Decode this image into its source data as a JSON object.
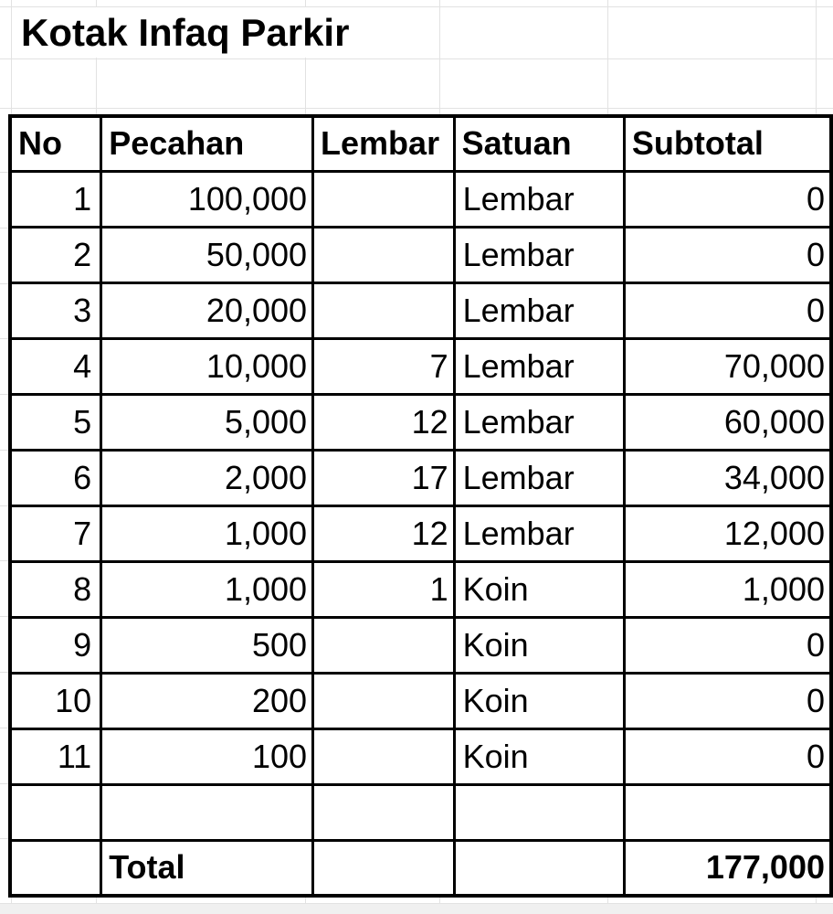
{
  "title": "Kotak Infaq Parkir",
  "table": {
    "headers": {
      "no": "No",
      "pecahan": "Pecahan",
      "lembar": "Lembar",
      "satuan": "Satuan",
      "subtotal": "Subtotal"
    },
    "rows": [
      {
        "no": "1",
        "pecahan": "100,000",
        "lembar": "",
        "satuan": "Lembar",
        "subtotal": "0"
      },
      {
        "no": "2",
        "pecahan": "50,000",
        "lembar": "",
        "satuan": "Lembar",
        "subtotal": "0"
      },
      {
        "no": "3",
        "pecahan": "20,000",
        "lembar": "",
        "satuan": "Lembar",
        "subtotal": "0"
      },
      {
        "no": "4",
        "pecahan": "10,000",
        "lembar": "7",
        "satuan": "Lembar",
        "subtotal": "70,000"
      },
      {
        "no": "5",
        "pecahan": "5,000",
        "lembar": "12",
        "satuan": "Lembar",
        "subtotal": "60,000"
      },
      {
        "no": "6",
        "pecahan": "2,000",
        "lembar": "17",
        "satuan": "Lembar",
        "subtotal": "34,000"
      },
      {
        "no": "7",
        "pecahan": "1,000",
        "lembar": "12",
        "satuan": "Lembar",
        "subtotal": "12,000"
      },
      {
        "no": "8",
        "pecahan": "1,000",
        "lembar": "1",
        "satuan": "Koin",
        "subtotal": "1,000"
      },
      {
        "no": "9",
        "pecahan": "500",
        "lembar": "",
        "satuan": "Koin",
        "subtotal": "0"
      },
      {
        "no": "10",
        "pecahan": "200",
        "lembar": "",
        "satuan": "Koin",
        "subtotal": "0"
      },
      {
        "no": "11",
        "pecahan": "100",
        "lembar": "",
        "satuan": "Koin",
        "subtotal": "0"
      }
    ],
    "total": {
      "label": "Total",
      "value": "177,000"
    }
  },
  "colors": {
    "text": "#000000",
    "table_border": "#000000",
    "gridline": "#e2e2e2",
    "bottom_strip": "#f0f0f0",
    "background": "#ffffff"
  }
}
